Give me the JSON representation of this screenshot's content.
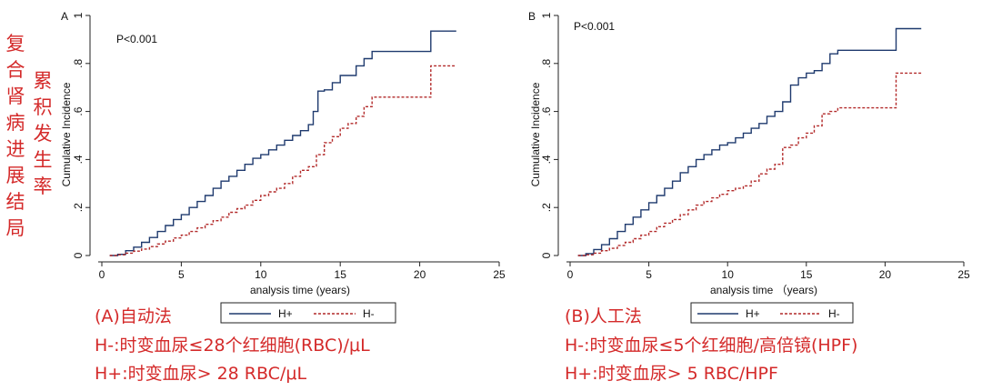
{
  "side_labels": {
    "outcome": "复合肾病进展结局",
    "cumulative": "累积发生率"
  },
  "chart_data": [
    {
      "type": "line",
      "panel": "A",
      "annotation": "P<0.001",
      "xlabel": "analysis time (years)",
      "ylabel": "Cumulative Incidence",
      "xlim": [
        0,
        25
      ],
      "ylim": [
        0,
        1
      ],
      "x_ticks": [
        "0",
        "5",
        "10",
        "15",
        "20",
        "25"
      ],
      "y_ticks": [
        "0",
        ".2",
        ".4",
        ".6",
        ".8",
        "1"
      ],
      "legend_placement": "bottom",
      "series": [
        {
          "name": "H+",
          "color": "#1f3a6e",
          "style": "solid",
          "x": [
            0.5,
            1.0,
            1.5,
            2.0,
            2.5,
            3.0,
            3.5,
            4.0,
            4.5,
            5.0,
            5.5,
            6.0,
            6.5,
            7.0,
            7.5,
            8.0,
            8.5,
            9.0,
            9.5,
            10.0,
            10.5,
            11.0,
            11.5,
            12.0,
            12.5,
            13.0,
            13.3,
            13.6,
            14.0,
            14.5,
            15.0,
            15.5,
            16.0,
            16.5,
            17.0,
            18.0,
            19.0,
            20.0,
            20.7,
            21.5,
            22.3
          ],
          "y": [
            0.0,
            0.005,
            0.02,
            0.035,
            0.055,
            0.075,
            0.1,
            0.125,
            0.15,
            0.17,
            0.2,
            0.225,
            0.25,
            0.28,
            0.31,
            0.33,
            0.355,
            0.38,
            0.405,
            0.42,
            0.44,
            0.46,
            0.48,
            0.5,
            0.52,
            0.545,
            0.6,
            0.685,
            0.69,
            0.72,
            0.75,
            0.75,
            0.79,
            0.82,
            0.85,
            0.85,
            0.85,
            0.85,
            0.935,
            0.935,
            0.935
          ]
        },
        {
          "name": "H-",
          "color": "#b22a2a",
          "style": "dashed",
          "x": [
            0.5,
            1.0,
            1.5,
            2.0,
            2.5,
            3.0,
            3.5,
            4.0,
            4.5,
            5.0,
            5.5,
            6.0,
            6.5,
            7.0,
            7.5,
            8.0,
            8.5,
            9.0,
            9.5,
            10.0,
            10.5,
            11.0,
            11.5,
            12.0,
            12.5,
            13.0,
            13.5,
            14.0,
            14.5,
            15.0,
            15.5,
            16.0,
            16.5,
            17.0,
            18.0,
            19.0,
            20.0,
            20.7,
            21.5,
            22.3
          ],
          "y": [
            0.0,
            0.003,
            0.01,
            0.018,
            0.027,
            0.037,
            0.048,
            0.06,
            0.073,
            0.085,
            0.1,
            0.115,
            0.13,
            0.145,
            0.16,
            0.18,
            0.195,
            0.21,
            0.23,
            0.25,
            0.265,
            0.28,
            0.3,
            0.33,
            0.355,
            0.37,
            0.42,
            0.47,
            0.495,
            0.53,
            0.55,
            0.58,
            0.62,
            0.66,
            0.66,
            0.66,
            0.66,
            0.79,
            0.79,
            0.79
          ]
        }
      ]
    },
    {
      "type": "line",
      "panel": "B",
      "annotation": "P<0.001",
      "xlabel": "analysis time （years)",
      "ylabel": "Cumulative Incidence",
      "xlim": [
        0,
        25
      ],
      "ylim": [
        0,
        1
      ],
      "x_ticks": [
        "0",
        "5",
        "10",
        "15",
        "20",
        "25"
      ],
      "y_ticks": [
        "0",
        ".2",
        ".4",
        ".6",
        ".8",
        "1"
      ],
      "legend_placement": "bottom",
      "series": [
        {
          "name": "H+",
          "color": "#1f3a6e",
          "style": "solid",
          "x": [
            0.5,
            1.0,
            1.5,
            2.0,
            2.5,
            3.0,
            3.5,
            4.0,
            4.5,
            5.0,
            5.5,
            6.0,
            6.5,
            7.0,
            7.5,
            8.0,
            8.5,
            9.0,
            9.5,
            10.0,
            10.5,
            11.0,
            11.5,
            12.0,
            12.5,
            13.0,
            13.5,
            14.0,
            14.5,
            15.0,
            15.5,
            16.0,
            16.5,
            17.0,
            18.0,
            19.0,
            20.0,
            20.7,
            21.5,
            22.3
          ],
          "y": [
            0.0,
            0.008,
            0.025,
            0.045,
            0.07,
            0.1,
            0.13,
            0.16,
            0.19,
            0.22,
            0.25,
            0.28,
            0.31,
            0.345,
            0.37,
            0.4,
            0.42,
            0.44,
            0.46,
            0.47,
            0.49,
            0.51,
            0.53,
            0.55,
            0.58,
            0.6,
            0.64,
            0.71,
            0.74,
            0.76,
            0.77,
            0.8,
            0.84,
            0.855,
            0.855,
            0.855,
            0.855,
            0.945,
            0.945,
            0.945
          ]
        },
        {
          "name": "H-",
          "color": "#b22a2a",
          "style": "dashed",
          "x": [
            0.5,
            1.0,
            1.5,
            2.0,
            2.5,
            3.0,
            3.5,
            4.0,
            4.5,
            5.0,
            5.5,
            6.0,
            6.5,
            7.0,
            7.5,
            8.0,
            8.5,
            9.0,
            9.5,
            10.0,
            10.5,
            11.0,
            11.5,
            12.0,
            12.5,
            13.0,
            13.5,
            14.0,
            14.5,
            15.0,
            15.5,
            16.0,
            16.5,
            17.0,
            18.0,
            19.0,
            20.0,
            20.7,
            21.5,
            22.3
          ],
          "y": [
            0.0,
            0.003,
            0.01,
            0.02,
            0.03,
            0.042,
            0.055,
            0.07,
            0.085,
            0.1,
            0.12,
            0.135,
            0.15,
            0.17,
            0.19,
            0.21,
            0.225,
            0.24,
            0.255,
            0.27,
            0.28,
            0.29,
            0.31,
            0.34,
            0.36,
            0.38,
            0.45,
            0.46,
            0.49,
            0.51,
            0.54,
            0.59,
            0.6,
            0.615,
            0.615,
            0.615,
            0.615,
            0.76,
            0.76,
            0.76
          ]
        }
      ]
    }
  ],
  "captions": {
    "a": {
      "line1": "(A)自动法",
      "line2": "H-:时变血尿≤28个红细胞(RBC)/μL",
      "line3": "H+:时变血尿> 28 RBC/μL"
    },
    "b": {
      "line1": "(B)人工法",
      "line2": "H-:时变血尿≤5个红细胞/高倍镜(HPF)",
      "line3": "H+:时变血尿> 5 RBC/HPF"
    }
  }
}
